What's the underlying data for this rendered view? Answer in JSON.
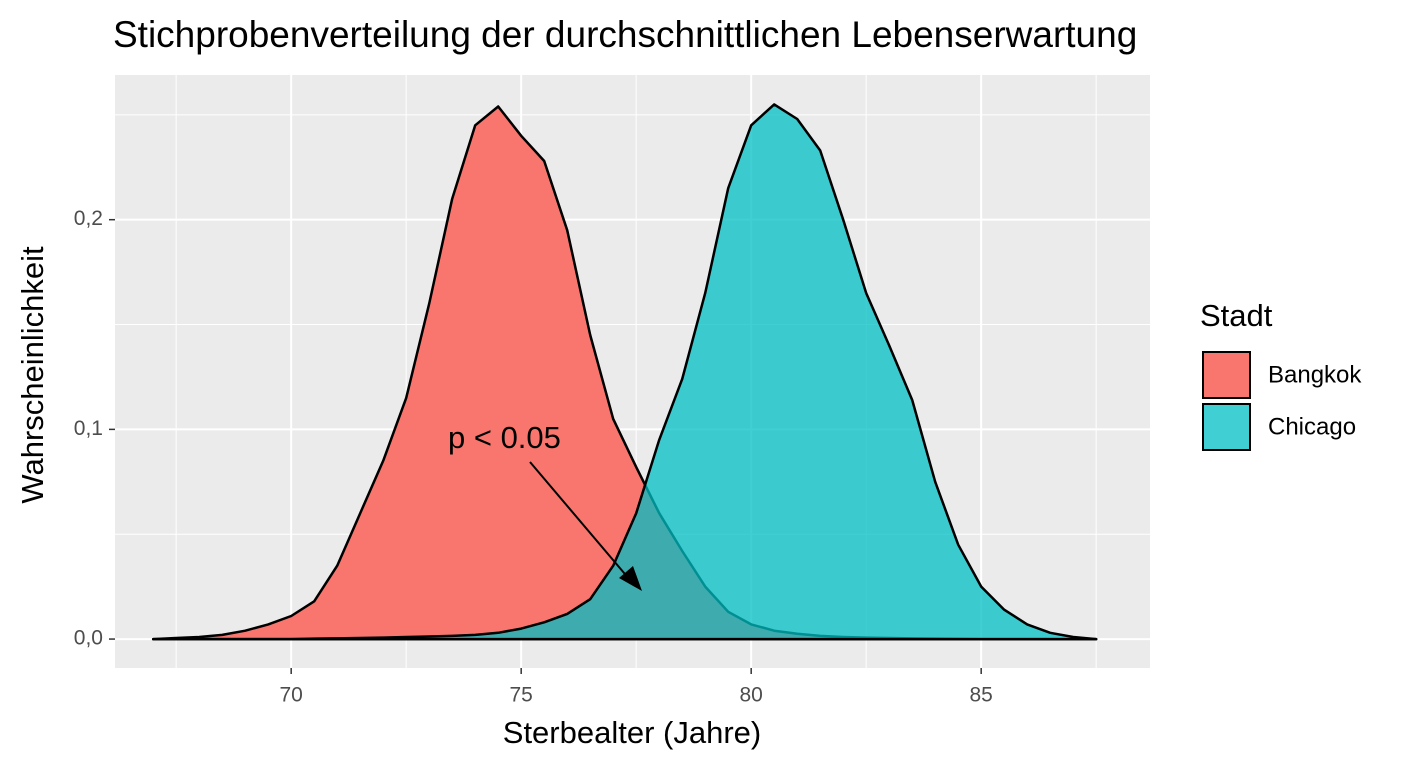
{
  "chart_data": {
    "type": "density",
    "title": "Stichprobenverteilung der durchschnittlichen Lebenserwartung",
    "x_label": "Sterbealter (Jahre)",
    "y_label": "Wahrscheinlichkeit",
    "legend_title": "Stadt",
    "annotation": "p < 0.05",
    "x": [
      67,
      67.5,
      68,
      68.5,
      69,
      69.5,
      70,
      70.5,
      71,
      71.5,
      72,
      72.5,
      73,
      73.5,
      74,
      74.5,
      75,
      75.5,
      76,
      76.5,
      77,
      77.5,
      78,
      78.5,
      79,
      79.5,
      80,
      80.5,
      81,
      81.5,
      82,
      82.5,
      83,
      83.5,
      84,
      84.5,
      85,
      85.5,
      86,
      86.5,
      87,
      87.5
    ],
    "series": [
      {
        "name": "Bangkok",
        "color": "#F8766D",
        "alpha": 1,
        "values": [
          0,
          0.0005,
          0.001,
          0.002,
          0.004,
          0.007,
          0.011,
          0.018,
          0.035,
          0.06,
          0.085,
          0.115,
          0.16,
          0.21,
          0.245,
          0.254,
          0.24,
          0.228,
          0.195,
          0.145,
          0.105,
          0.082,
          0.06,
          0.042,
          0.025,
          0.013,
          0.007,
          0.004,
          0.0025,
          0.0015,
          0.001,
          0.0007,
          0.0005,
          0.0003,
          0.0002,
          0.0001,
          0,
          0,
          0,
          0,
          0,
          0
        ]
      },
      {
        "name": "Chicago",
        "color": "#00BFC4",
        "alpha": 0.75,
        "values": [
          0,
          0,
          0,
          0,
          0,
          0,
          0,
          0.0002,
          0.0003,
          0.0005,
          0.0007,
          0.001,
          0.0012,
          0.0015,
          0.002,
          0.003,
          0.005,
          0.008,
          0.012,
          0.019,
          0.035,
          0.06,
          0.095,
          0.124,
          0.165,
          0.215,
          0.245,
          0.255,
          0.248,
          0.233,
          0.2,
          0.165,
          0.14,
          0.114,
          0.075,
          0.045,
          0.025,
          0.014,
          0.007,
          0.003,
          0.001,
          0
        ]
      }
    ],
    "xlim": [
      66.17,
      88.67
    ],
    "ylim": [
      -0.0138,
      0.269
    ],
    "xticks": [
      70,
      75,
      80,
      85
    ],
    "yticks": [
      {
        "value": 0,
        "label": "0,0"
      },
      {
        "value": 0.1,
        "label": "0,1"
      },
      {
        "value": 0.2,
        "label": "0,2"
      }
    ],
    "xminorticks": [
      67.5,
      72.5,
      77.5,
      82.5,
      87.5
    ],
    "yminorticks": [
      0.05,
      0.15,
      0.25
    ],
    "grid": true
  }
}
